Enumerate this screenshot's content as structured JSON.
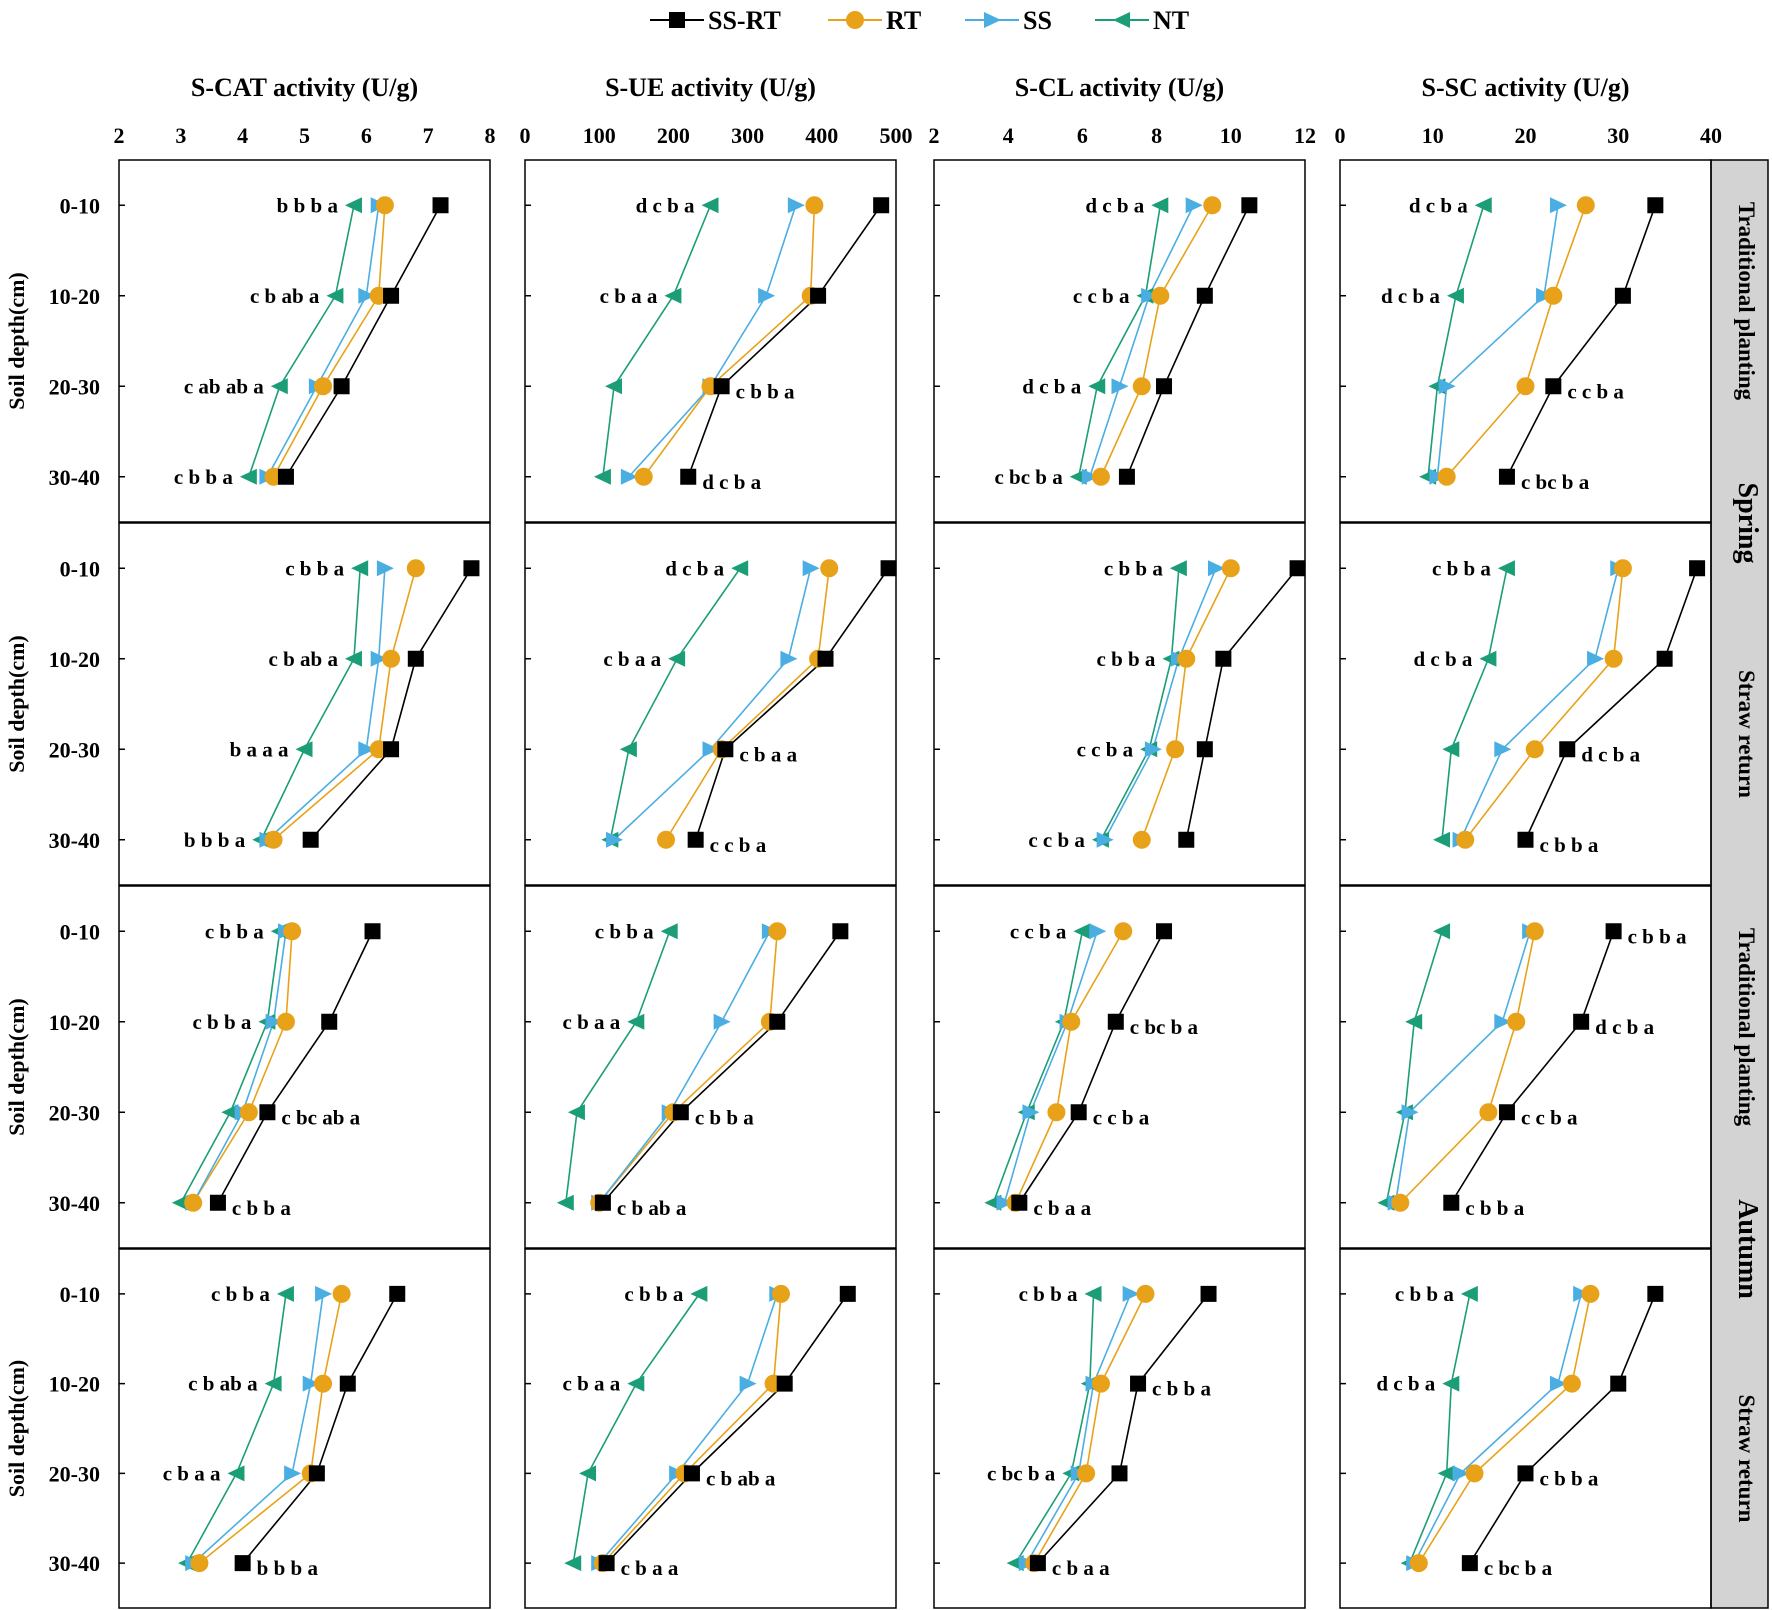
{
  "legend": [
    {
      "name": "SS-RT",
      "color": "#000000",
      "marker": "square"
    },
    {
      "name": "RT",
      "color": "#E8A21A",
      "marker": "circle"
    },
    {
      "name": "SS",
      "color": "#4BAEE3",
      "marker": "triangle-right"
    },
    {
      "name": "NT",
      "color": "#1B9E77",
      "marker": "triangle-left"
    }
  ],
  "y_axis_label": "Soil depth(cm)",
  "depths": [
    "0-10",
    "10-20",
    "20-30",
    "30-40"
  ],
  "strip_labels": [
    "Traditional planting",
    "Straw return",
    "Traditional planting",
    "Straw return"
  ],
  "season_labels": [
    "Spring",
    "Autumn"
  ],
  "columns": [
    {
      "title": "S-CAT activity (U/g)",
      "xlim": [
        2,
        8
      ],
      "ticks": [
        "2",
        "3",
        "4",
        "5",
        "6",
        "7",
        "8"
      ]
    },
    {
      "title": "S-UE activity (U/g)",
      "xlim": [
        0,
        500
      ],
      "ticks": [
        "0",
        "100",
        "200",
        "300",
        "400",
        "500"
      ]
    },
    {
      "title": "S-CL activity (U/g)",
      "xlim": [
        2,
        12
      ],
      "ticks": [
        "2",
        "4",
        "6",
        "8",
        "10",
        "12"
      ]
    },
    {
      "title": "S-SC activity (U/g)",
      "xlim": [
        0,
        40
      ],
      "ticks": [
        "0",
        "10",
        "20",
        "30",
        "40"
      ]
    }
  ],
  "chart_data": [
    {
      "type": "line",
      "enzyme": "S-CAT",
      "row": "Spring - Traditional planting",
      "x_label": "S-CAT activity (U/g)",
      "y_label": "Soil depth(cm)",
      "xlim": [
        2,
        8
      ],
      "y": [
        "0-10",
        "10-20",
        "20-30",
        "30-40"
      ],
      "series": [
        {
          "name": "SS-RT",
          "values": [
            7.2,
            6.4,
            5.6,
            4.7
          ]
        },
        {
          "name": "RT",
          "values": [
            6.3,
            6.2,
            5.3,
            4.5
          ]
        },
        {
          "name": "SS",
          "values": [
            6.2,
            6.0,
            5.2,
            4.4
          ]
        },
        {
          "name": "NT",
          "values": [
            5.8,
            5.5,
            4.6,
            4.1
          ]
        }
      ],
      "letters": [
        "b b b a",
        "c b ab a",
        "c ab ab a",
        "c b b a"
      ]
    },
    {
      "type": "line",
      "enzyme": "S-UE",
      "row": "Spring - Traditional planting",
      "x_label": "S-UE activity (U/g)",
      "y_label": "Soil depth(cm)",
      "xlim": [
        0,
        500
      ],
      "y": [
        "0-10",
        "10-20",
        "20-30",
        "30-40"
      ],
      "series": [
        {
          "name": "SS-RT",
          "values": [
            480,
            395,
            265,
            220
          ]
        },
        {
          "name": "RT",
          "values": [
            390,
            385,
            250,
            160
          ]
        },
        {
          "name": "SS",
          "values": [
            365,
            325,
            250,
            140
          ]
        },
        {
          "name": "NT",
          "values": [
            250,
            200,
            120,
            105
          ]
        }
      ],
      "letters": [
        "d c b a",
        "c b a a",
        "c b b a",
        "d c b a"
      ]
    },
    {
      "type": "line",
      "enzyme": "S-CL",
      "row": "Spring - Traditional planting",
      "x_label": "S-CL activity (U/g)",
      "y_label": "Soil depth(cm)",
      "xlim": [
        2,
        12
      ],
      "y": [
        "0-10",
        "10-20",
        "20-30",
        "30-40"
      ],
      "series": [
        {
          "name": "SS-RT",
          "values": [
            10.5,
            9.3,
            8.2,
            7.2
          ]
        },
        {
          "name": "RT",
          "values": [
            9.5,
            8.1,
            7.6,
            6.5
          ]
        },
        {
          "name": "SS",
          "values": [
            9.0,
            7.8,
            7.0,
            6.2
          ]
        },
        {
          "name": "NT",
          "values": [
            8.1,
            7.7,
            6.4,
            5.9
          ]
        }
      ],
      "letters": [
        "d c b a",
        "c c b a",
        "d c b a",
        "c bc b a"
      ]
    },
    {
      "type": "line",
      "enzyme": "S-SC",
      "row": "Spring - Traditional planting",
      "x_label": "S-SC activity (U/g)",
      "y_label": "Soil depth(cm)",
      "xlim": [
        0,
        40
      ],
      "y": [
        "0-10",
        "10-20",
        "20-30",
        "30-40"
      ],
      "series": [
        {
          "name": "SS-RT",
          "values": [
            34,
            30.5,
            23,
            18
          ]
        },
        {
          "name": "RT",
          "values": [
            26.5,
            23,
            20,
            11.5
          ]
        },
        {
          "name": "SS",
          "values": [
            23.5,
            22,
            11.5,
            10.5
          ]
        },
        {
          "name": "NT",
          "values": [
            15.5,
            12.5,
            10.5,
            9.5
          ]
        }
      ],
      "letters": [
        "d c b a",
        "d c b a",
        "c c b a",
        "c bc b a"
      ]
    },
    {
      "type": "line",
      "enzyme": "S-CAT",
      "row": "Spring - Straw return",
      "x_label": "S-CAT activity (U/g)",
      "y_label": "Soil depth(cm)",
      "xlim": [
        2,
        8
      ],
      "y": [
        "0-10",
        "10-20",
        "20-30",
        "30-40"
      ],
      "series": [
        {
          "name": "SS-RT",
          "values": [
            7.7,
            6.8,
            6.4,
            5.1
          ]
        },
        {
          "name": "RT",
          "values": [
            6.8,
            6.4,
            6.2,
            4.5
          ]
        },
        {
          "name": "SS",
          "values": [
            6.3,
            6.2,
            6.0,
            4.4
          ]
        },
        {
          "name": "NT",
          "values": [
            5.9,
            5.8,
            5.0,
            4.3
          ]
        }
      ],
      "letters": [
        "c b b a",
        "c b ab a",
        "b a a a",
        "b b b a"
      ]
    },
    {
      "type": "line",
      "enzyme": "S-UE",
      "row": "Spring - Straw return",
      "x_label": "S-UE activity (U/g)",
      "y_label": "Soil depth(cm)",
      "xlim": [
        0,
        500
      ],
      "y": [
        "0-10",
        "10-20",
        "20-30",
        "30-40"
      ],
      "series": [
        {
          "name": "SS-RT",
          "values": [
            490,
            405,
            270,
            230
          ]
        },
        {
          "name": "RT",
          "values": [
            410,
            395,
            265,
            190
          ]
        },
        {
          "name": "SS",
          "values": [
            385,
            355,
            250,
            120
          ]
        },
        {
          "name": "NT",
          "values": [
            290,
            205,
            140,
            115
          ]
        }
      ],
      "letters": [
        "d c b a",
        "c b a a",
        "c b a a",
        "c c b a"
      ]
    },
    {
      "type": "line",
      "enzyme": "S-CL",
      "row": "Spring - Straw return",
      "x_label": "S-CL activity (U/g)",
      "y_label": "Soil depth(cm)",
      "xlim": [
        2,
        12
      ],
      "y": [
        "0-10",
        "10-20",
        "20-30",
        "30-40"
      ],
      "series": [
        {
          "name": "SS-RT",
          "values": [
            11.8,
            9.8,
            9.3,
            8.8
          ]
        },
        {
          "name": "RT",
          "values": [
            10.0,
            8.8,
            8.5,
            7.6
          ]
        },
        {
          "name": "SS",
          "values": [
            9.6,
            8.6,
            7.9,
            6.6
          ]
        },
        {
          "name": "NT",
          "values": [
            8.6,
            8.4,
            7.8,
            6.5
          ]
        }
      ],
      "letters": [
        "c b b a",
        "c b b a",
        "c c b a",
        "c c b a"
      ]
    },
    {
      "type": "line",
      "enzyme": "S-SC",
      "row": "Spring - Straw return",
      "x_label": "S-SC activity (U/g)",
      "y_label": "Soil depth(cm)",
      "xlim": [
        0,
        40
      ],
      "y": [
        "0-10",
        "10-20",
        "20-30",
        "30-40"
      ],
      "series": [
        {
          "name": "SS-RT",
          "values": [
            38.5,
            35,
            24.5,
            20
          ]
        },
        {
          "name": "RT",
          "values": [
            30.5,
            29.5,
            21,
            13.5
          ]
        },
        {
          "name": "SS",
          "values": [
            30,
            27.5,
            17.5,
            13
          ]
        },
        {
          "name": "NT",
          "values": [
            18,
            16,
            12,
            11
          ]
        }
      ],
      "letters": [
        "c b b a",
        "d c b a",
        "d c b a",
        "c b b a"
      ]
    },
    {
      "type": "line",
      "enzyme": "S-CAT",
      "row": "Autumn - Traditional planting",
      "x_label": "S-CAT activity (U/g)",
      "y_label": "Soil depth(cm)",
      "xlim": [
        2,
        8
      ],
      "y": [
        "0-10",
        "10-20",
        "20-30",
        "30-40"
      ],
      "series": [
        {
          "name": "SS-RT",
          "values": [
            6.1,
            5.4,
            4.4,
            3.6
          ]
        },
        {
          "name": "RT",
          "values": [
            4.8,
            4.7,
            4.1,
            3.2
          ]
        },
        {
          "name": "SS",
          "values": [
            4.7,
            4.5,
            4.0,
            3.2
          ]
        },
        {
          "name": "NT",
          "values": [
            4.6,
            4.4,
            3.8,
            3.0
          ]
        }
      ],
      "letters": [
        "c b b a",
        "c b b a",
        "c bc ab a",
        "c b b a"
      ]
    },
    {
      "type": "line",
      "enzyme": "S-UE",
      "row": "Autumn - Traditional planting",
      "x_label": "S-UE activity (U/g)",
      "y_label": "Soil depth(cm)",
      "xlim": [
        0,
        500
      ],
      "y": [
        "0-10",
        "10-20",
        "20-30",
        "30-40"
      ],
      "series": [
        {
          "name": "SS-RT",
          "values": [
            425,
            340,
            210,
            105
          ]
        },
        {
          "name": "RT",
          "values": [
            340,
            330,
            200,
            100
          ]
        },
        {
          "name": "SS",
          "values": [
            330,
            265,
            195,
            100
          ]
        },
        {
          "name": "NT",
          "values": [
            195,
            150,
            70,
            55
          ]
        }
      ],
      "letters": [
        "c b b a",
        "c b a a",
        "c b b a",
        "c b ab a"
      ]
    },
    {
      "type": "line",
      "enzyme": "S-CL",
      "row": "Autumn - Traditional planting",
      "x_label": "S-CL activity (U/g)",
      "y_label": "Soil depth(cm)",
      "xlim": [
        2,
        12
      ],
      "y": [
        "0-10",
        "10-20",
        "20-30",
        "30-40"
      ],
      "series": [
        {
          "name": "SS-RT",
          "values": [
            8.2,
            6.9,
            5.9,
            4.3
          ]
        },
        {
          "name": "RT",
          "values": [
            7.1,
            5.7,
            5.3,
            4.2
          ]
        },
        {
          "name": "SS",
          "values": [
            6.4,
            5.6,
            4.6,
            3.9
          ]
        },
        {
          "name": "NT",
          "values": [
            6.0,
            5.5,
            4.5,
            3.6
          ]
        }
      ],
      "letters": [
        "c c b a",
        "c bc b a",
        "c c b a",
        "c b a a"
      ]
    },
    {
      "type": "line",
      "enzyme": "S-SC",
      "row": "Autumn - Traditional planting",
      "x_label": "S-SC activity (U/g)",
      "y_label": "Soil depth(cm)",
      "xlim": [
        0,
        40
      ],
      "y": [
        "0-10",
        "10-20",
        "20-30",
        "30-40"
      ],
      "series": [
        {
          "name": "SS-RT",
          "values": [
            29.5,
            26,
            18,
            12
          ]
        },
        {
          "name": "RT",
          "values": [
            21,
            19,
            16,
            6.5
          ]
        },
        {
          "name": "SS",
          "values": [
            20.5,
            17.5,
            7.5,
            6
          ]
        },
        {
          "name": "NT",
          "values": [
            11,
            8,
            7,
            5
          ]
        }
      ],
      "letters": [
        "c b b a",
        "d c b a",
        "c c b a",
        "c b b a"
      ]
    },
    {
      "type": "line",
      "enzyme": "S-CAT",
      "row": "Autumn - Straw return",
      "x_label": "S-CAT activity (U/g)",
      "y_label": "Soil depth(cm)",
      "xlim": [
        2,
        8
      ],
      "y": [
        "0-10",
        "10-20",
        "20-30",
        "30-40"
      ],
      "series": [
        {
          "name": "SS-RT",
          "values": [
            6.5,
            5.7,
            5.2,
            4.0
          ]
        },
        {
          "name": "RT",
          "values": [
            5.6,
            5.3,
            5.1,
            3.3
          ]
        },
        {
          "name": "SS",
          "values": [
            5.3,
            5.1,
            4.8,
            3.2
          ]
        },
        {
          "name": "NT",
          "values": [
            4.7,
            4.5,
            3.9,
            3.1
          ]
        }
      ],
      "letters": [
        "c b b a",
        "c b ab a",
        "c b a a",
        "b b b a"
      ]
    },
    {
      "type": "line",
      "enzyme": "S-UE",
      "row": "Autumn - Straw return",
      "x_label": "S-UE activity (U/g)",
      "y_label": "Soil depth(cm)",
      "xlim": [
        0,
        500
      ],
      "y": [
        "0-10",
        "10-20",
        "20-30",
        "30-40"
      ],
      "series": [
        {
          "name": "SS-RT",
          "values": [
            435,
            350,
            225,
            110
          ]
        },
        {
          "name": "RT",
          "values": [
            345,
            335,
            215,
            105
          ]
        },
        {
          "name": "SS",
          "values": [
            340,
            300,
            205,
            100
          ]
        },
        {
          "name": "NT",
          "values": [
            235,
            150,
            85,
            65
          ]
        }
      ],
      "letters": [
        "c b b a",
        "c b a a",
        "c b ab a",
        "c b a a"
      ]
    },
    {
      "type": "line",
      "enzyme": "S-CL",
      "row": "Autumn - Straw return",
      "x_label": "S-CL activity (U/g)",
      "y_label": "Soil depth(cm)",
      "xlim": [
        2,
        12
      ],
      "y": [
        "0-10",
        "10-20",
        "20-30",
        "30-40"
      ],
      "series": [
        {
          "name": "SS-RT",
          "values": [
            9.4,
            7.5,
            7.0,
            4.8
          ]
        },
        {
          "name": "RT",
          "values": [
            7.7,
            6.5,
            6.1,
            4.7
          ]
        },
        {
          "name": "SS",
          "values": [
            7.3,
            6.3,
            5.9,
            4.5
          ]
        },
        {
          "name": "NT",
          "values": [
            6.3,
            6.2,
            5.7,
            4.2
          ]
        }
      ],
      "letters": [
        "c b b a",
        "c b b a",
        "c bc b a",
        "c b a a"
      ]
    },
    {
      "type": "line",
      "enzyme": "S-SC",
      "row": "Autumn - Straw return",
      "x_label": "S-SC activity (U/g)",
      "y_label": "Soil depth(cm)",
      "xlim": [
        0,
        40
      ],
      "y": [
        "0-10",
        "10-20",
        "20-30",
        "30-40"
      ],
      "series": [
        {
          "name": "SS-RT",
          "values": [
            34,
            30,
            20,
            14
          ]
        },
        {
          "name": "RT",
          "values": [
            27,
            25,
            14.5,
            8.5
          ]
        },
        {
          "name": "SS",
          "values": [
            26,
            23.5,
            13,
            8
          ]
        },
        {
          "name": "NT",
          "values": [
            14,
            12,
            11.5,
            7.5
          ]
        }
      ],
      "letters": [
        "c b b a",
        "d c b a",
        "c b b a",
        "c bc b a"
      ]
    }
  ]
}
